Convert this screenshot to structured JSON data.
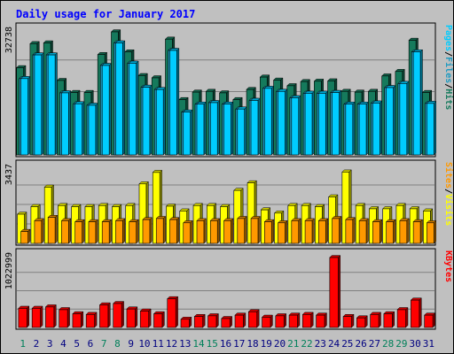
{
  "chart_data": {
    "type": "bar",
    "title": "Daily usage for January 2017",
    "categories": [
      "1",
      "2",
      "3",
      "4",
      "5",
      "6",
      "7",
      "8",
      "9",
      "10",
      "11",
      "12",
      "13",
      "14",
      "15",
      "16",
      "17",
      "18",
      "19",
      "20",
      "21",
      "22",
      "23",
      "24",
      "25",
      "26",
      "27",
      "28",
      "29",
      "30",
      "31"
    ],
    "weekend_days": [
      "1",
      "7",
      "8",
      "14",
      "15",
      "21",
      "22",
      "28",
      "29"
    ],
    "panels": [
      {
        "id": "hits-files-pages",
        "ymax_label": "32738",
        "ymax": 32738,
        "legend": [
          "Pages",
          "/",
          "Files",
          "/",
          "Hits"
        ],
        "series": [
          {
            "name": "Hits",
            "color": "#157a5c",
            "values": [
              23200,
              29600,
              29800,
              19800,
              16600,
              16600,
              26700,
              32738,
              27400,
              21100,
              20500,
              30800,
              14700,
              16700,
              16900,
              16500,
              14700,
              17400,
              20700,
              19900,
              18400,
              19500,
              19600,
              19700,
              16900,
              16700,
              16900,
              21000,
              22200,
              30500,
              16600
            ]
          },
          {
            "name": "Files",
            "color": "#1e9ac0",
            "values": [
              20300,
              26600,
              26600,
              16500,
              13600,
              13200,
              23800,
              29800,
              24400,
              18000,
              17400,
              27800,
              11400,
              13500,
              13900,
              13500,
              12200,
              14500,
              17700,
              16900,
              15200,
              16400,
              16400,
              16600,
              13500,
              13500,
              13800,
              17900,
              19000,
              27400,
              13700
            ]
          },
          {
            "name": "Pages",
            "color": "#00ccff",
            "values": [
              20300,
              26600,
              26600,
              16500,
              13600,
              13200,
              23800,
              29800,
              24400,
              18000,
              17400,
              27800,
              11400,
              13500,
              13900,
              13500,
              12200,
              14500,
              17700,
              16900,
              15200,
              16400,
              16400,
              16600,
              13500,
              13500,
              13800,
              17900,
              19000,
              27400,
              13700
            ]
          }
        ]
      },
      {
        "id": "visits-sites",
        "ymax_label": "3437",
        "ymax": 3437,
        "legend": [
          "Sites",
          "/",
          "Visits"
        ],
        "series": [
          {
            "name": "Visits",
            "color": "#ffff00",
            "values": [
              1350,
              1700,
              2600,
              1750,
              1700,
              1700,
              1750,
              1700,
              1750,
              2750,
              3280,
              1720,
              1500,
              1750,
              1750,
              1700,
              2450,
              2800,
              1550,
              1400,
              1750,
              1750,
              1700,
              2150,
              3300,
              1750,
              1600,
              1600,
              1750,
              1600,
              1500
            ]
          },
          {
            "name": "Sites",
            "color": "#ff9900",
            "values": [
              550,
              1050,
              1200,
              1050,
              1000,
              1000,
              1000,
              1050,
              1000,
              1100,
              1150,
              1100,
              950,
              1050,
              1050,
              1050,
              1150,
              1150,
              1000,
              950,
              1050,
              1050,
              1050,
              1150,
              1100,
              1050,
              1000,
              1000,
              1050,
              1000,
              950
            ]
          }
        ]
      },
      {
        "id": "kbytes",
        "ymax_label": "1022999",
        "ymax": 1022999,
        "legend": [
          "KBytes"
        ],
        "series": [
          {
            "name": "KBytes",
            "color": "#ff0000",
            "values": [
              280000,
              280000,
              300000,
              260000,
              200000,
              190000,
              330000,
              350000,
              270000,
              240000,
              200000,
              420000,
              120000,
              160000,
              170000,
              130000,
              180000,
              230000,
              150000,
              170000,
              180000,
              190000,
              180000,
              1022999,
              160000,
              140000,
              190000,
              200000,
              260000,
              400000,
              180000
            ]
          }
        ]
      }
    ]
  }
}
